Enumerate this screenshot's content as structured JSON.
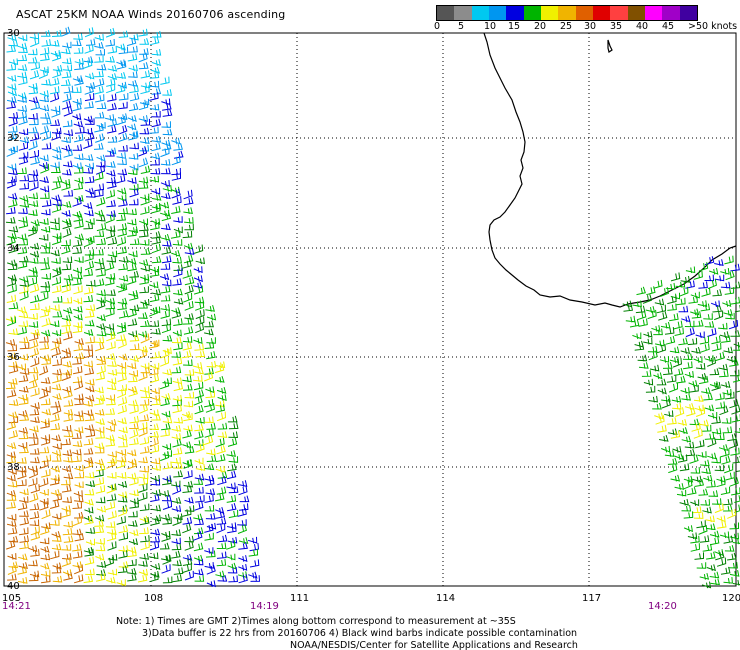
{
  "title": "ASCAT 25KM NOAA Winds 20160706 ascending",
  "colorbar": {
    "colors": [
      "#555555",
      "#8c8c8c",
      "#00c8f0",
      "#0096f0",
      "#0000e0",
      "#00b400",
      "#f0f000",
      "#f0b400",
      "#e06000",
      "#e00000",
      "#ff4040",
      "#805000",
      "#ff00ff",
      "#a000c8",
      "#4000a0"
    ],
    "labels": [
      "0",
      "5",
      "10",
      "15",
      "20",
      "25",
      "30",
      "35",
      "40",
      "45",
      ">50 knots"
    ]
  },
  "lat_labels": [
    "30",
    "32",
    "34",
    "36",
    "38",
    "40"
  ],
  "lon_labels": [
    "105",
    "108",
    "111",
    "114",
    "117",
    "120"
  ],
  "times": [
    "14:21",
    "14:19",
    "14:20"
  ],
  "notes": [
    "Note: 1) Times are GMT 2)Times along bottom correspond to measurement at ~35S",
    "3)Data buffer is 22 hrs from 20160706 4) Black wind barbs indicate possible contamination",
    "NOAA/NESDIS/Center for Satellite Applications and Research"
  ],
  "wind_colors": {
    "cyan": "#00c8f0",
    "lightblue": "#0096f0",
    "blue": "#0000e0",
    "green": "#00b400",
    "darkgreen": "#008000",
    "yellow": "#f0f000",
    "orange": "#f0b400",
    "darkorange": "#c86400"
  }
}
